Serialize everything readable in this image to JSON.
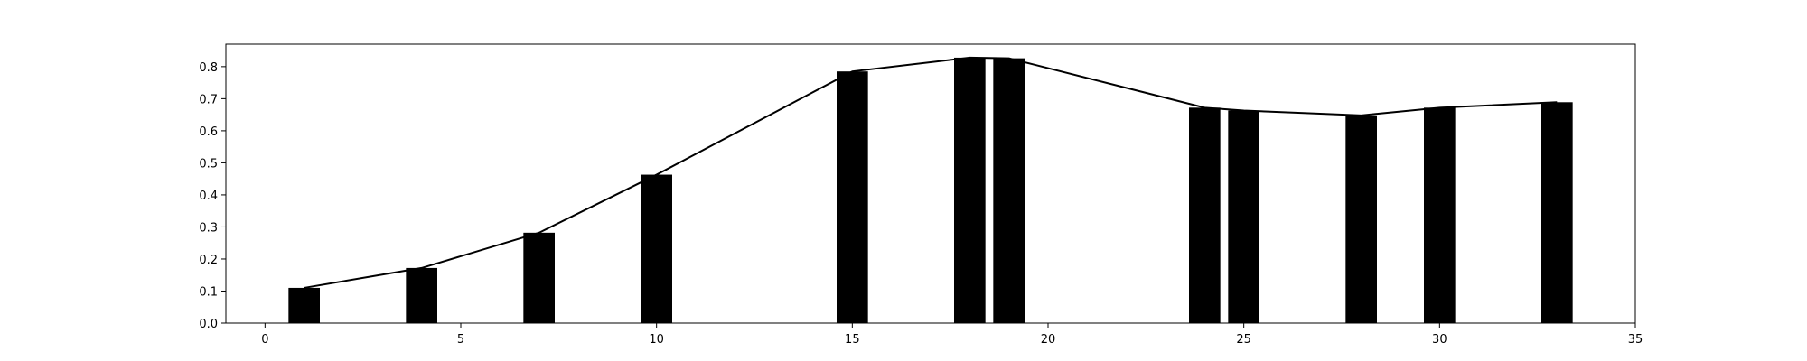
{
  "chart_data": {
    "type": "bar",
    "title": "",
    "xlabel": "",
    "ylabel": "",
    "xlim": [
      -1,
      35
    ],
    "ylim": [
      0,
      0.87
    ],
    "x_ticks": [
      0,
      5,
      10,
      15,
      20,
      25,
      30,
      35
    ],
    "y_ticks": [
      0.0,
      0.1,
      0.2,
      0.3,
      0.4,
      0.5,
      0.6,
      0.7,
      0.8
    ],
    "x_tick_labels": [
      "0",
      "5",
      "10",
      "15",
      "20",
      "25",
      "30",
      "35"
    ],
    "y_tick_labels": [
      "0.0",
      "0.1",
      "0.2",
      "0.3",
      "0.4",
      "0.5",
      "0.6",
      "0.7",
      "0.8"
    ],
    "grid": false,
    "colors": {
      "bar": "#000000",
      "line": "#000000"
    },
    "series": [
      {
        "type": "bar",
        "bar_width": 0.8,
        "x": [
          1,
          4,
          7,
          10,
          15,
          18,
          19,
          24,
          25,
          28,
          30,
          33
        ],
        "values": [
          0.11,
          0.172,
          0.282,
          0.463,
          0.785,
          0.828,
          0.826,
          0.672,
          0.663,
          0.648,
          0.672,
          0.689
        ]
      },
      {
        "type": "line",
        "x": [
          1,
          4,
          7,
          10,
          15,
          18,
          19,
          24,
          25,
          28,
          30,
          33
        ],
        "values": [
          0.11,
          0.172,
          0.282,
          0.463,
          0.785,
          0.828,
          0.826,
          0.672,
          0.663,
          0.648,
          0.672,
          0.689
        ]
      }
    ]
  }
}
